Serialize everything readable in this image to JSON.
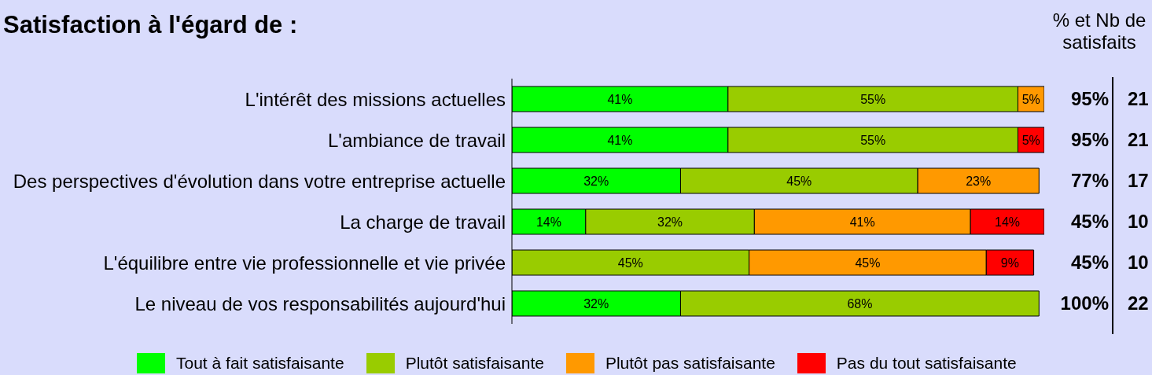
{
  "chart_data": {
    "type": "bar",
    "orientation": "horizontal",
    "stacked": true,
    "title": "Satisfaction à l'égard de :",
    "categories": [
      "L'intérêt des missions actuelles",
      "L'ambiance de travail",
      "Des perspectives d'évolution dans votre entreprise actuelle",
      "La charge de travail",
      "L'équilibre entre vie professionnelle et vie privée",
      "Le niveau de vos responsabilités aujourd'hui"
    ],
    "series": [
      {
        "name": "Tout à fait satisfaisante",
        "color": "#00ff00",
        "values": [
          41,
          41,
          32,
          14,
          null,
          32
        ],
        "value_labels": [
          "41%",
          "41%",
          "32%",
          "14%",
          null,
          "32%"
        ]
      },
      {
        "name": "Plutôt satisfaisante",
        "color": "#99cc00",
        "values": [
          55,
          55,
          45,
          32,
          45,
          68
        ],
        "value_labels": [
          "55%",
          "55%",
          "45%",
          "32%",
          "45%",
          "68%"
        ]
      },
      {
        "name": "Plutôt pas satisfaisante",
        "color": "#ff9900",
        "values": [
          5,
          null,
          23,
          41,
          45,
          null
        ],
        "value_labels": [
          "5%",
          null,
          "23%",
          "41%",
          "45%",
          null
        ]
      },
      {
        "name": "Pas du tout satisfaisante",
        "color": "#ff0000",
        "values": [
          null,
          5,
          null,
          14,
          9,
          null
        ],
        "value_labels": [
          null,
          "5%",
          null,
          "14%",
          "9%",
          null
        ]
      }
    ],
    "annotations": [
      "% et Nb de satisfaits",
      "95%",
      "21",
      "95%",
      "21",
      "77%",
      "17",
      "45%",
      "10",
      "45%",
      "10",
      "100%",
      "22"
    ],
    "legend": "bottom",
    "tick_labels": "y"
  }
}
